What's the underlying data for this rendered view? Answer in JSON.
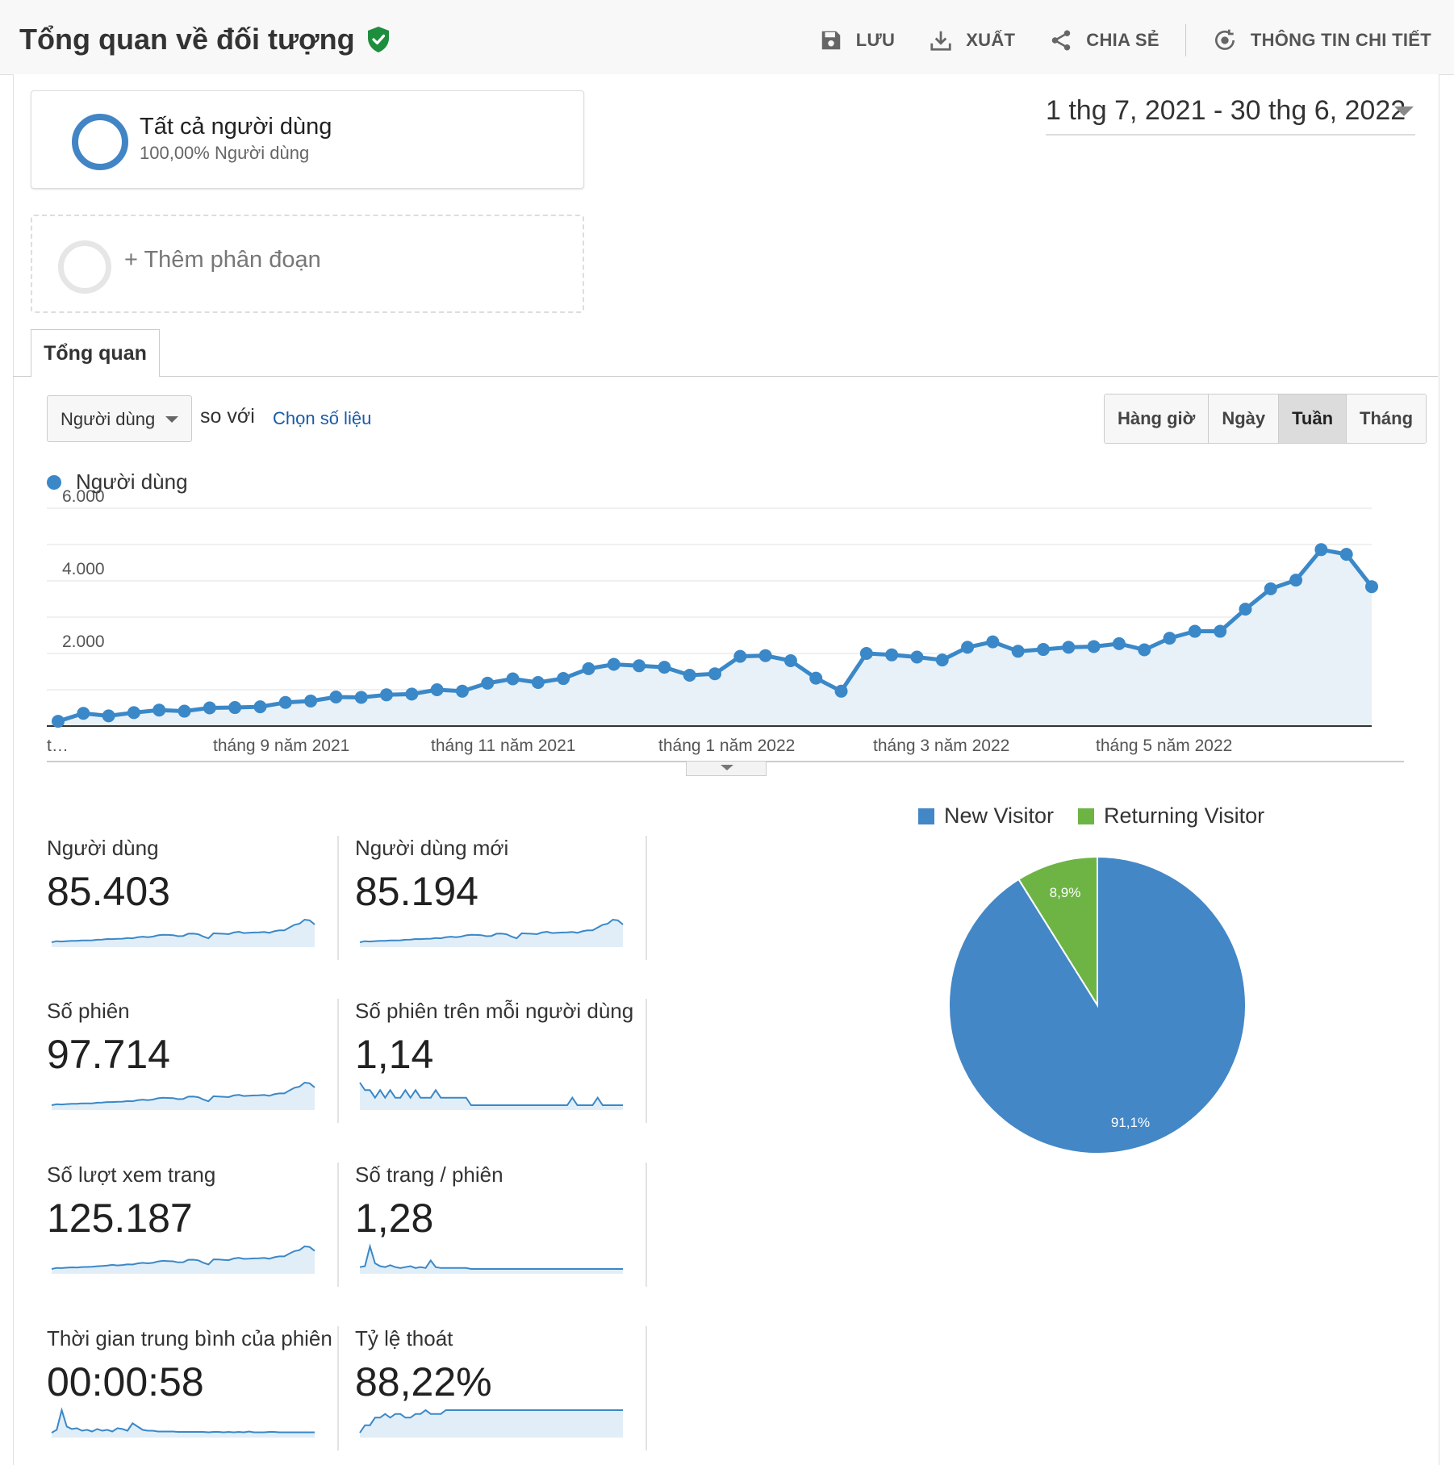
{
  "header": {
    "title": "Tổng quan về đối tượng",
    "actions": {
      "save": "LƯU",
      "export": "XUẤT",
      "share": "CHIA SẺ",
      "insights": "THÔNG TIN CHI TIẾT"
    }
  },
  "segments": {
    "active": {
      "name": "Tất cả người dùng",
      "sub": "100,00% Người dùng"
    },
    "add_label": "+ Thêm phân đoạn"
  },
  "date_range": "1 thg 7, 2021 - 30 thg 6, 2022",
  "tab": "Tổng quan",
  "controls": {
    "metric": "Người dùng",
    "compare_text": "so với",
    "choose_metric": "Chọn số liệu",
    "granularity": [
      "Hàng giờ",
      "Ngày",
      "Tuần",
      "Tháng"
    ],
    "selected_granularity": "Tuần"
  },
  "chart_data": [
    {
      "type": "line",
      "series": [
        {
          "name": "Người dùng",
          "values": [
            130,
            350,
            280,
            370,
            440,
            410,
            500,
            510,
            530,
            650,
            690,
            800,
            790,
            860,
            880,
            1000,
            960,
            1180,
            1300,
            1200,
            1310,
            1580,
            1700,
            1660,
            1620,
            1400,
            1440,
            1920,
            1940,
            1800,
            1320,
            960,
            2000,
            1960,
            1900,
            1820,
            2170,
            2320,
            2060,
            2110,
            2170,
            2190,
            2270,
            2100,
            2420,
            2610,
            2610,
            3220,
            3780,
            4020,
            4860,
            4730,
            3840
          ]
        }
      ],
      "x_tick_labels": [
        "t…",
        "tháng 9 năm 2021",
        "tháng 11 năm 2021",
        "tháng 1 năm 2022",
        "tháng 3 năm 2022",
        "tháng 5 năm 2022"
      ],
      "y_tick_labels": [
        "6.000",
        "4.000",
        "2.000"
      ],
      "ylim": [
        0,
        6000
      ],
      "color": "#3a88c8"
    },
    {
      "type": "pie",
      "series": [
        {
          "name": "New Visitor",
          "value": 91.1,
          "label": "91,1%",
          "color": "#4387c6"
        },
        {
          "name": "Returning Visitor",
          "value": 8.9,
          "label": "8,9%",
          "color": "#6db445"
        }
      ]
    }
  ],
  "metrics": [
    {
      "label": "Người dùng",
      "value": "85.403",
      "spark": [
        130,
        350,
        280,
        370,
        440,
        410,
        500,
        510,
        530,
        650,
        690,
        800,
        790,
        860,
        880,
        1000,
        960,
        1180,
        1300,
        1200,
        1310,
        1580,
        1700,
        1660,
        1620,
        1400,
        1440,
        1920,
        1940,
        1800,
        1320,
        960,
        2000,
        1960,
        1900,
        1820,
        2170,
        2320,
        2060,
        2110,
        2170,
        2190,
        2270,
        2100,
        2420,
        2610,
        2610,
        3220,
        3780,
        4020,
        4860,
        4730,
        3840
      ]
    },
    {
      "label": "Người dùng mới",
      "value": "85.194",
      "spark": [
        130,
        350,
        280,
        370,
        440,
        410,
        500,
        510,
        530,
        650,
        690,
        800,
        790,
        860,
        880,
        1000,
        960,
        1180,
        1300,
        1200,
        1310,
        1580,
        1700,
        1660,
        1620,
        1400,
        1440,
        1920,
        1940,
        1800,
        1320,
        960,
        2000,
        1960,
        1900,
        1820,
        2170,
        2320,
        2060,
        2110,
        2170,
        2190,
        2270,
        2100,
        2420,
        2610,
        2610,
        3220,
        3780,
        4020,
        4860,
        4730,
        3840
      ]
    },
    {
      "label": "Số phiên",
      "value": "97.714",
      "spark": [
        150,
        380,
        320,
        420,
        500,
        470,
        570,
        580,
        600,
        740,
        790,
        910,
        900,
        980,
        1000,
        1140,
        1090,
        1340,
        1480,
        1370,
        1490,
        1800,
        1940,
        1890,
        1840,
        1590,
        1640,
        2190,
        2210,
        2050,
        1500,
        1090,
        2280,
        2230,
        2160,
        2070,
        2470,
        2640,
        2350,
        2400,
        2470,
        2490,
        2590,
        2390,
        2760,
        2970,
        2970,
        3670,
        4310,
        4580,
        5540,
        5390,
        4380
      ]
    },
    {
      "label": "Số phiên trên mỗi người dùng",
      "value": "1,14",
      "spark": [
        1.16,
        1.15,
        1.15,
        1.14,
        1.15,
        1.14,
        1.15,
        1.14,
        1.14,
        1.15,
        1.14,
        1.15,
        1.14,
        1.14,
        1.14,
        1.15,
        1.14,
        1.14,
        1.14,
        1.14,
        1.14,
        1.14,
        1.13,
        1.13,
        1.13,
        1.13,
        1.13,
        1.13,
        1.13,
        1.13,
        1.13,
        1.13,
        1.13,
        1.13,
        1.13,
        1.13,
        1.13,
        1.13,
        1.13,
        1.13,
        1.13,
        1.13,
        1.14,
        1.13,
        1.13,
        1.13,
        1.13,
        1.14,
        1.13,
        1.13,
        1.13,
        1.13,
        1.13
      ]
    },
    {
      "label": "Số lượt xem trang",
      "value": "125.187",
      "spark": [
        200,
        460,
        420,
        520,
        600,
        560,
        700,
        720,
        760,
        900,
        960,
        1080,
        1240,
        1100,
        1200,
        1380,
        1320,
        1600,
        1760,
        1620,
        1760,
        2100,
        2260,
        2200,
        2140,
        1880,
        1920,
        2520,
        2540,
        2380,
        1780,
        1320,
        2640,
        2580,
        2500,
        2420,
        2860,
        3040,
        2760,
        2800,
        2880,
        2900,
        3000,
        2800,
        3160,
        3380,
        3380,
        4100,
        4720,
        4980,
        5920,
        5780,
        4780
      ]
    },
    {
      "label": "Số trang / phiên",
      "value": "1,28",
      "spark": [
        1.3,
        1.31,
        1.52,
        1.34,
        1.31,
        1.3,
        1.32,
        1.3,
        1.29,
        1.3,
        1.31,
        1.29,
        1.3,
        1.29,
        1.37,
        1.3,
        1.29,
        1.29,
        1.29,
        1.29,
        1.29,
        1.29,
        1.28,
        1.28,
        1.28,
        1.28,
        1.28,
        1.28,
        1.28,
        1.28,
        1.28,
        1.28,
        1.28,
        1.28,
        1.28,
        1.28,
        1.28,
        1.28,
        1.28,
        1.28,
        1.28,
        1.28,
        1.28,
        1.28,
        1.28,
        1.28,
        1.28,
        1.28,
        1.28,
        1.28,
        1.28,
        1.28,
        1.28
      ]
    },
    {
      "label": "Thời gian trung bình của phiên",
      "value": "00:00:58",
      "spark": [
        55,
        62,
        110,
        70,
        64,
        66,
        60,
        62,
        58,
        64,
        60,
        62,
        58,
        66,
        64,
        60,
        78,
        70,
        62,
        60,
        60,
        58,
        58,
        58,
        58,
        57,
        57,
        57,
        57,
        57,
        57,
        56,
        57,
        57,
        56,
        57,
        56,
        57,
        56,
        58,
        56,
        56,
        56,
        57,
        57,
        56,
        56,
        56,
        56,
        56,
        56,
        56,
        56
      ]
    },
    {
      "label": "Tỷ lệ thoát",
      "value": "88,22%",
      "spark": [
        87.6,
        87.8,
        87.8,
        88.0,
        88.0,
        88.1,
        88.0,
        88.1,
        88.1,
        88.0,
        88.0,
        88.1,
        88.1,
        88.2,
        88.1,
        88.1,
        88.1,
        88.2,
        88.2,
        88.2,
        88.2,
        88.2,
        88.2,
        88.2,
        88.2,
        88.2,
        88.2,
        88.2,
        88.2,
        88.2,
        88.2,
        88.2,
        88.2,
        88.2,
        88.2,
        88.2,
        88.2,
        88.2,
        88.2,
        88.2,
        88.2,
        88.2,
        88.2,
        88.2,
        88.2,
        88.2,
        88.2,
        88.2,
        88.2,
        88.2,
        88.2,
        88.2,
        88.2
      ]
    }
  ]
}
